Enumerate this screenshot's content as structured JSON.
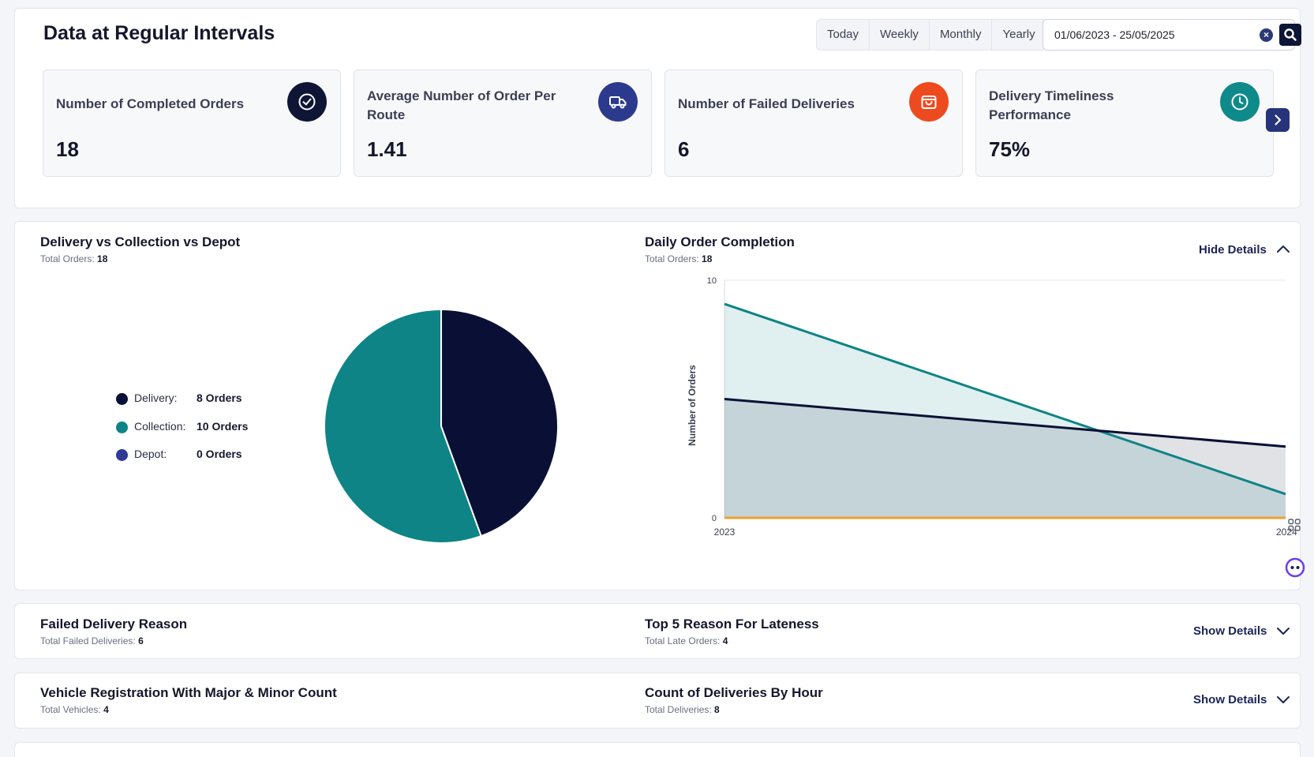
{
  "header": {
    "title": "Data at Regular Intervals"
  },
  "periods": [
    "Today",
    "Weekly",
    "Monthly",
    "Yearly"
  ],
  "date_range": {
    "value": "01/06/2023 - 25/05/2025"
  },
  "kpis": [
    {
      "title": "Number of Completed Orders",
      "value": "18",
      "icon": "check-circle-icon",
      "color": "#0f1535"
    },
    {
      "title": "Average Number of Order Per Route",
      "value": "1.41",
      "icon": "truck-icon",
      "color": "#2c3a8e"
    },
    {
      "title": "Number of Failed Deliveries",
      "value": "6",
      "icon": "shopping-bag-icon",
      "color": "#ee4a1f"
    },
    {
      "title": "Delivery Timeliness Performance",
      "value": "75%",
      "icon": "clock-icon",
      "color": "#0f8a8a"
    }
  ],
  "pie_section": {
    "title": "Delivery vs Collection vs Depot",
    "sub_label": "Total Orders:",
    "sub_value": "18",
    "legend": [
      {
        "label": "Delivery:",
        "value": "8 Orders",
        "color": "#0a1035"
      },
      {
        "label": "Collection:",
        "value": "10 Orders",
        "color": "#0e8486"
      },
      {
        "label": "Depot:",
        "value": "0 Orders",
        "color": "#2e3a96"
      }
    ]
  },
  "line_section": {
    "title": "Daily Order Completion",
    "sub_label": "Total Orders:",
    "sub_value": "18",
    "toggle": "Hide Details"
  },
  "chart_data": [
    {
      "type": "pie",
      "labels": [
        "Delivery",
        "Collection",
        "Depot"
      ],
      "values": [
        8,
        10,
        0
      ],
      "colors": [
        "#0a1035",
        "#0e8486",
        "#2e3a96"
      ]
    },
    {
      "type": "area",
      "x": [
        "2023",
        "2024"
      ],
      "ylabel": "Number of Orders",
      "ylim": [
        0,
        10
      ],
      "yticks": [
        0,
        10
      ],
      "series": [
        {
          "values": [
            9,
            1
          ],
          "color": "#0e8486"
        },
        {
          "values": [
            5,
            3
          ],
          "color": "#0a1035"
        },
        {
          "values": [
            0,
            0
          ],
          "color": "#f0a030"
        }
      ]
    }
  ],
  "collapsed_rows": [
    {
      "left_title": "Failed Delivery Reason",
      "left_sub_label": "Total Failed Deliveries:",
      "left_sub_value": "6",
      "right_title": "Top 5 Reason For Lateness",
      "right_sub_label": "Total Late Orders:",
      "right_sub_value": "4",
      "toggle": "Show Details"
    },
    {
      "left_title": "Vehicle Registration With Major & Minor Count",
      "left_sub_label": "Total Vehicles:",
      "left_sub_value": "4",
      "right_title": "Count of Deliveries By Hour",
      "right_sub_label": "Total Deliveries:",
      "right_sub_value": "8",
      "toggle": "Show Details"
    }
  ]
}
